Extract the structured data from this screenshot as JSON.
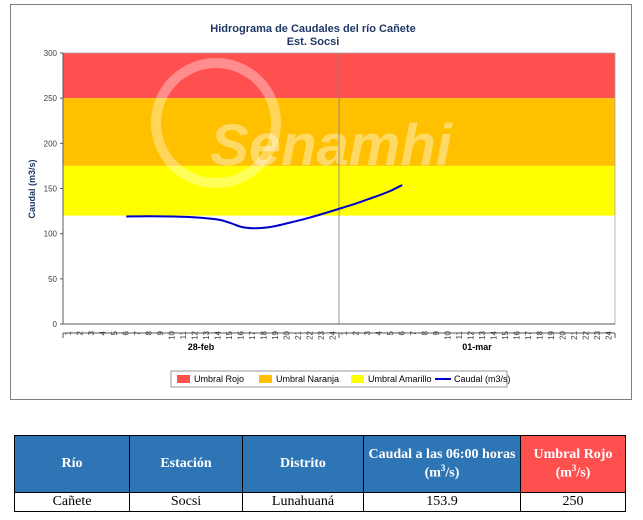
{
  "chart_data": {
    "type": "line",
    "title": "Hidrograma de Caudales  del río Cañete",
    "subtitle": "Est. Socsi",
    "ylabel": "Caudal (m3/s)",
    "xlabel": "",
    "ylim": [
      0,
      300
    ],
    "yticks": [
      0,
      50,
      100,
      150,
      200,
      250,
      300
    ],
    "hours_per_day": [
      "1",
      "2",
      "3",
      "4",
      "5",
      "6",
      "7",
      "8",
      "9",
      "10",
      "11",
      "12",
      "13",
      "14",
      "15",
      "16",
      "17",
      "18",
      "19",
      "20",
      "21",
      "22",
      "23",
      "24"
    ],
    "days": [
      "28-feb",
      "01-mar"
    ],
    "thresholds": [
      {
        "name": "Umbral Rojo",
        "from": 250,
        "to": 300,
        "color": "#ff5050"
      },
      {
        "name": "Umbral Naranja",
        "from": 175,
        "to": 250,
        "color": "#ffc000"
      },
      {
        "name": "Umbral Amarillo",
        "from": 120,
        "to": 175,
        "color": "#ffff00"
      }
    ],
    "series": [
      {
        "name": "Caudal (m3/s)",
        "color": "#0000cc",
        "points": [
          {
            "day": "28-feb",
            "hour": 6,
            "y": 119
          },
          {
            "day": "28-feb",
            "hour": 8,
            "y": 119.3
          },
          {
            "day": "28-feb",
            "hour": 10,
            "y": 119
          },
          {
            "day": "28-feb",
            "hour": 12,
            "y": 118
          },
          {
            "day": "28-feb",
            "hour": 14,
            "y": 115.5
          },
          {
            "day": "28-feb",
            "hour": 15,
            "y": 112
          },
          {
            "day": "28-feb",
            "hour": 16,
            "y": 107.5
          },
          {
            "day": "28-feb",
            "hour": 17,
            "y": 106
          },
          {
            "day": "28-feb",
            "hour": 18,
            "y": 106.5
          },
          {
            "day": "28-feb",
            "hour": 19,
            "y": 108.5
          },
          {
            "day": "28-feb",
            "hour": 20,
            "y": 111.5
          },
          {
            "day": "28-feb",
            "hour": 22,
            "y": 118
          },
          {
            "day": "28-feb",
            "hour": 24,
            "y": 125.5
          },
          {
            "day": "01-mar",
            "hour": 1,
            "y": 129.5
          },
          {
            "day": "01-mar",
            "hour": 2,
            "y": 133.5
          },
          {
            "day": "01-mar",
            "hour": 3,
            "y": 138
          },
          {
            "day": "01-mar",
            "hour": 4,
            "y": 142.5
          },
          {
            "day": "01-mar",
            "hour": 5,
            "y": 147.5
          },
          {
            "day": "01-mar",
            "hour": 6,
            "y": 153.9
          }
        ]
      }
    ],
    "legend_position": "bottom",
    "grid": false,
    "watermark": "Senamhi"
  },
  "table": {
    "header_color": "#2e75b6",
    "highlight_color": "#ff5050",
    "headers": [
      "Río",
      "Estación",
      "Distrito",
      "Caudal a las 06:00 horas",
      "Umbral Rojo"
    ],
    "units": {
      "caudal": "(m",
      "caudal_close": "/s)",
      "umbral": "(m",
      "umbral_close": "/s)",
      "exp": "3"
    },
    "row": [
      "Cañete",
      "Socsi",
      "Lunahuaná",
      "153.9",
      "250"
    ]
  }
}
